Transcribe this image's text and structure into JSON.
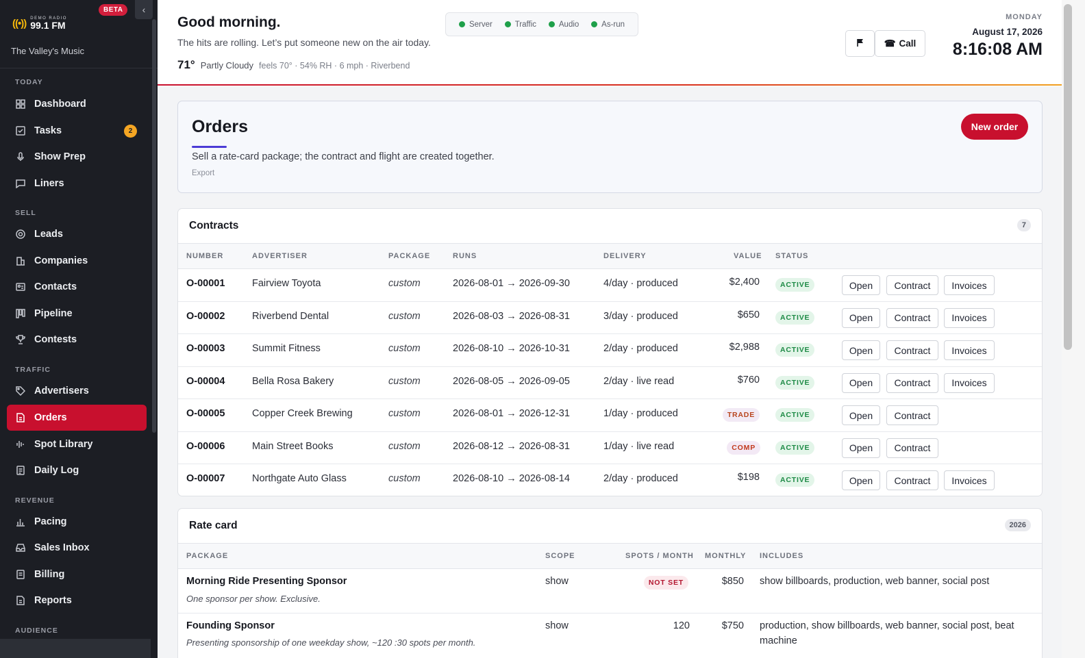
{
  "sidebar": {
    "logo_small": "DEMO RADIO",
    "logo_big": "99.1 FM",
    "tagline": "The Valley's Music",
    "beta": "BETA",
    "sections": {
      "today": "TODAY",
      "sell": "SELL",
      "traffic": "TRAFFIC",
      "revenue": "REVENUE",
      "audience": "AUDIENCE"
    },
    "items": {
      "dashboard": "Dashboard",
      "tasks": "Tasks",
      "tasks_badge": "2",
      "show_prep": "Show Prep",
      "liners": "Liners",
      "leads": "Leads",
      "companies": "Companies",
      "contacts": "Contacts",
      "pipeline": "Pipeline",
      "contests": "Contests",
      "advertisers": "Advertisers",
      "orders": "Orders",
      "spot_library": "Spot Library",
      "daily_log": "Daily Log",
      "pacing": "Pacing",
      "sales_inbox": "Sales Inbox",
      "billing": "Billing",
      "reports": "Reports"
    }
  },
  "header": {
    "greeting": "Good morning.",
    "subtitle": "The hits are rolling. Let’s put someone new on the air today.",
    "temp": "71°",
    "condition": "Partly Cloudy",
    "weather_detail": "feels 70° · 54% RH · 6 mph · Riverbend",
    "status": [
      "Server",
      "Traffic",
      "Audio",
      "As-run"
    ],
    "call_label": "Call",
    "day": "MONDAY",
    "date": "August 17, 2026",
    "time": "8:16:08 AM"
  },
  "orders": {
    "title": "Orders",
    "description": "Sell a rate-card package; the contract and flight are created together.",
    "export": "Export",
    "new_order": "New order"
  },
  "contracts": {
    "title": "Contracts",
    "count": "7",
    "headers": [
      "NUMBER",
      "ADVERTISER",
      "PACKAGE",
      "RUNS",
      "DELIVERY",
      "VALUE",
      "STATUS"
    ],
    "btn_open": "Open",
    "btn_contract": "Contract",
    "btn_invoices": "Invoices",
    "rows": [
      {
        "number": "O-00001",
        "advertiser": "Fairview Toyota",
        "package": "custom",
        "runs": "2026-08-01 → 2026-09-30",
        "delivery": "4/day · produced",
        "value": "$2,400",
        "status": "ACTIVE"
      },
      {
        "number": "O-00002",
        "advertiser": "Riverbend Dental",
        "package": "custom",
        "runs": "2026-08-03 → 2026-08-31",
        "delivery": "3/day · produced",
        "value": "$650",
        "status": "ACTIVE"
      },
      {
        "number": "O-00003",
        "advertiser": "Summit Fitness",
        "package": "custom",
        "runs": "2026-08-10 → 2026-10-31",
        "delivery": "2/day · produced",
        "value": "$2,988",
        "status": "ACTIVE"
      },
      {
        "number": "O-00004",
        "advertiser": "Bella Rosa Bakery",
        "package": "custom",
        "runs": "2026-08-05 → 2026-09-05",
        "delivery": "2/day · live read",
        "value": "$760",
        "status": "ACTIVE"
      },
      {
        "number": "O-00005",
        "advertiser": "Copper Creek Brewing",
        "package": "custom",
        "runs": "2026-08-01 → 2026-12-31",
        "delivery": "1/day · produced",
        "value": "TRADE",
        "status": "ACTIVE"
      },
      {
        "number": "O-00006",
        "advertiser": "Main Street Books",
        "package": "custom",
        "runs": "2026-08-12 → 2026-08-31",
        "delivery": "1/day · live read",
        "value": "COMP",
        "status": "ACTIVE"
      },
      {
        "number": "O-00007",
        "advertiser": "Northgate Auto Glass",
        "package": "custom",
        "runs": "2026-08-10 → 2026-08-14",
        "delivery": "2/day · produced",
        "value": "$198",
        "status": "ACTIVE"
      }
    ]
  },
  "rate_card": {
    "title": "Rate card",
    "badge": "2026",
    "headers": [
      "PACKAGE",
      "SCOPE",
      "SPOTS / MONTH",
      "MONTHLY",
      "INCLUDES"
    ],
    "rows": [
      {
        "name": "Morning Ride Presenting Sponsor",
        "desc": "One sponsor per show. Exclusive.",
        "scope": "show",
        "spots": "NOT SET",
        "monthly": "$850",
        "includes": "show billboards, production, web banner, social post"
      },
      {
        "name": "Founding Sponsor",
        "desc": "Presenting sponsorship of one weekday show, ~120 :30 spots per month.",
        "scope": "show",
        "spots": "120",
        "monthly": "$750",
        "includes_1": "production, show billboards, web banner, social post, beat",
        "includes_2": "machine"
      }
    ]
  }
}
